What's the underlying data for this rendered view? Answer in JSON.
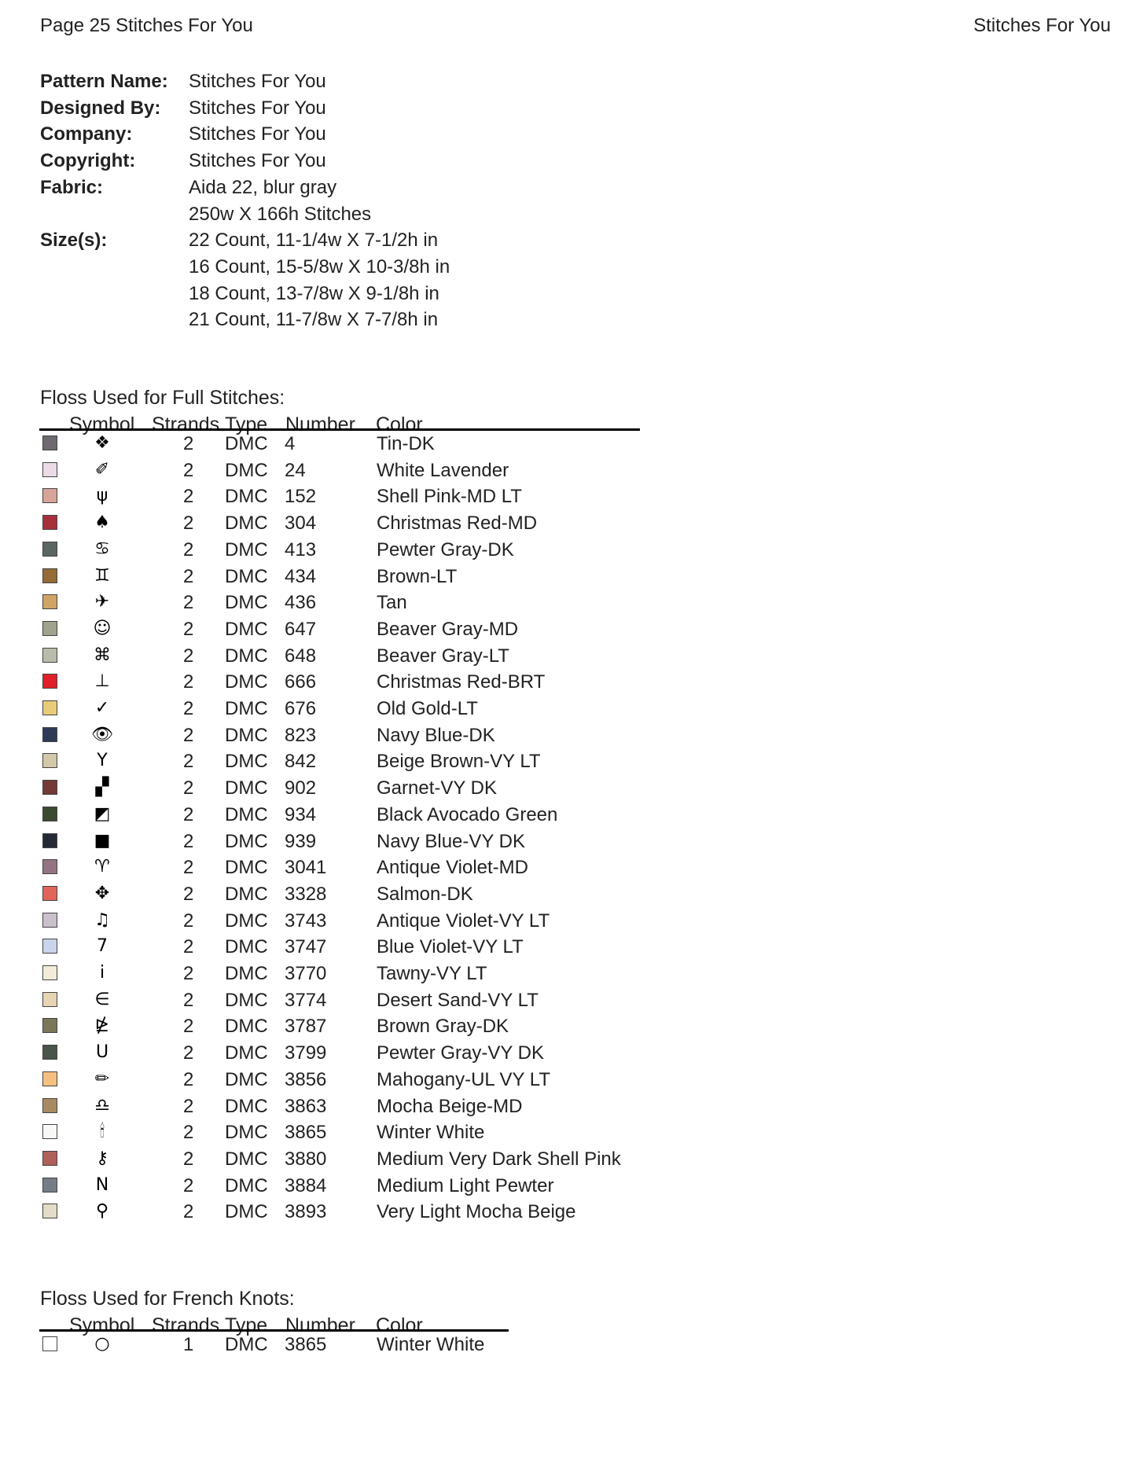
{
  "header": {
    "left": "Page 25  Stitches For You",
    "right": "Stitches For You"
  },
  "info": [
    {
      "label": "Pattern Name:",
      "value": "Stitches For You"
    },
    {
      "label": "Designed By:",
      "value": "Stitches For You"
    },
    {
      "label": "Company:",
      "value": "Stitches For You"
    },
    {
      "label": "Copyright:",
      "value": "Stitches For You"
    },
    {
      "label": "Fabric:",
      "value": "Aida 22, blur gray"
    },
    {
      "label": "",
      "value": "250w X 166h Stitches"
    },
    {
      "label": "Size(s):",
      "value": "22 Count,   11-1/4w X 7-1/2h in"
    },
    {
      "label": "",
      "value": "16 Count,   15-5/8w X 10-3/8h in"
    },
    {
      "label": "",
      "value": "18 Count,   13-7/8w X 9-1/8h in"
    },
    {
      "label": "",
      "value": "21 Count,   11-7/8w X 7-7/8h in"
    }
  ],
  "full": {
    "title": "Floss Used for Full Stitches:",
    "columns": [
      "Symbol",
      "Strands",
      "Type",
      "Number",
      "Color"
    ],
    "rows": [
      {
        "swatch": "#6e6a70",
        "symbol": "❖",
        "icon": "four-diamonds-icon",
        "strands": "2",
        "type": "DMC",
        "number": "4",
        "color": "Tin-DK"
      },
      {
        "swatch": "#eadbe6",
        "symbol": "✐",
        "icon": "pencil-icon",
        "strands": "2",
        "type": "DMC",
        "number": "24",
        "color": "White Lavender"
      },
      {
        "swatch": "#d8a49a",
        "symbol": "ψ",
        "icon": "psi-icon",
        "strands": "2",
        "type": "DMC",
        "number": "152",
        "color": "Shell Pink-MD LT"
      },
      {
        "swatch": "#a8303a",
        "symbol": "♠",
        "icon": "spade-icon",
        "strands": "2",
        "type": "DMC",
        "number": "304",
        "color": "Christmas Red-MD"
      },
      {
        "swatch": "#5b6662",
        "symbol": "♋",
        "icon": "cancer-icon",
        "strands": "2",
        "type": "DMC",
        "number": "413",
        "color": "Pewter Gray-DK"
      },
      {
        "swatch": "#946a36",
        "symbol": "♊",
        "icon": "gemini-icon",
        "strands": "2",
        "type": "DMC",
        "number": "434",
        "color": "Brown-LT"
      },
      {
        "swatch": "#d0a464",
        "symbol": "✈",
        "icon": "airplane-icon",
        "strands": "2",
        "type": "DMC",
        "number": "436",
        "color": "Tan"
      },
      {
        "swatch": "#9ea48c",
        "symbol": "☺",
        "icon": "smiley-icon",
        "strands": "2",
        "type": "DMC",
        "number": "647",
        "color": "Beaver Gray-MD"
      },
      {
        "swatch": "#b8bcaa",
        "symbol": "⌘",
        "icon": "command-icon",
        "strands": "2",
        "type": "DMC",
        "number": "648",
        "color": "Beaver Gray-LT"
      },
      {
        "swatch": "#e02028",
        "symbol": "⊥",
        "icon": "up-tack-icon",
        "strands": "2",
        "type": "DMC",
        "number": "666",
        "color": "Christmas Red-BRT"
      },
      {
        "swatch": "#e8cc78",
        "symbol": "✓",
        "icon": "check-icon",
        "strands": "2",
        "type": "DMC",
        "number": "676",
        "color": "Old Gold-LT"
      },
      {
        "swatch": "#2e3a56",
        "symbol": "👁",
        "icon": "eye-icon",
        "strands": "2",
        "type": "DMC",
        "number": "823",
        "color": "Navy Blue-DK"
      },
      {
        "swatch": "#d4c8aa",
        "symbol": "Y",
        "icon": "y-icon",
        "strands": "2",
        "type": "DMC",
        "number": "842",
        "color": "Beige Brown-VY LT"
      },
      {
        "swatch": "#743a36",
        "symbol": "▞",
        "icon": "checker-icon",
        "strands": "2",
        "type": "DMC",
        "number": "902",
        "color": "Garnet-VY DK"
      },
      {
        "swatch": "#3c4a30",
        "symbol": "◩",
        "icon": "flag-icon",
        "strands": "2",
        "type": "DMC",
        "number": "934",
        "color": "Black Avocado Green"
      },
      {
        "swatch": "#262a36",
        "symbol": "■",
        "icon": "square-icon",
        "strands": "2",
        "type": "DMC",
        "number": "939",
        "color": "Navy Blue-VY DK"
      },
      {
        "swatch": "#947482",
        "symbol": "♈",
        "icon": "aries-icon",
        "strands": "2",
        "type": "DMC",
        "number": "3041",
        "color": "Antique Violet-MD"
      },
      {
        "swatch": "#e0645a",
        "symbol": "✥",
        "icon": "cross-icon",
        "strands": "2",
        "type": "DMC",
        "number": "3328",
        "color": "Salmon-DK"
      },
      {
        "swatch": "#cac0cc",
        "symbol": "♫",
        "icon": "music-note-icon",
        "strands": "2",
        "type": "DMC",
        "number": "3743",
        "color": "Antique Violet-VY LT"
      },
      {
        "swatch": "#cad4ea",
        "symbol": "7",
        "icon": "seven-icon",
        "strands": "2",
        "type": "DMC",
        "number": "3747",
        "color": "Blue Violet-VY LT"
      },
      {
        "swatch": "#f2ecd8",
        "symbol": "i",
        "icon": "i-icon",
        "strands": "2",
        "type": "DMC",
        "number": "3770",
        "color": "Tawny-VY LT"
      },
      {
        "swatch": "#e6d4b4",
        "symbol": "∈",
        "icon": "element-of-icon",
        "strands": "2",
        "type": "DMC",
        "number": "3774",
        "color": "Desert Sand-VY LT"
      },
      {
        "swatch": "#7a7658",
        "symbol": "⋭",
        "icon": "fan-lines-icon",
        "strands": "2",
        "type": "DMC",
        "number": "3787",
        "color": "Brown Gray-DK"
      },
      {
        "swatch": "#4a544a",
        "symbol": "U",
        "icon": "u-icon",
        "strands": "2",
        "type": "DMC",
        "number": "3799",
        "color": "Pewter Gray-VY DK"
      },
      {
        "swatch": "#f4c080",
        "symbol": "✏",
        "icon": "small-pencil-icon",
        "strands": "2",
        "type": "DMC",
        "number": "3856",
        "color": "Mahogany-UL VY LT"
      },
      {
        "swatch": "#a88a62",
        "symbol": "♎",
        "icon": "libra-icon",
        "strands": "2",
        "type": "DMC",
        "number": "3863",
        "color": "Mocha Beige-MD"
      },
      {
        "swatch": "#f8f8f6",
        "symbol": "🕯",
        "icon": "candle-icon",
        "strands": "2",
        "type": "DMC",
        "number": "3865",
        "color": "Winter White"
      },
      {
        "swatch": "#b0605a",
        "symbol": "⚷",
        "icon": "key-icon",
        "strands": "2",
        "type": "DMC",
        "number": "3880",
        "color": "Medium Very Dark Shell Pink"
      },
      {
        "swatch": "#767c86",
        "symbol": "N",
        "icon": "n-icon",
        "strands": "2",
        "type": "DMC",
        "number": "3884",
        "color": "Medium Light Pewter"
      },
      {
        "swatch": "#e2dcc8",
        "symbol": "⚲",
        "icon": "small-key-icon",
        "strands": "2",
        "type": "DMC",
        "number": "3893",
        "color": "Very Light Mocha Beige"
      }
    ]
  },
  "knots": {
    "title": "Floss Used for French Knots:",
    "columns": [
      "Symbol",
      "Strands",
      "Type",
      "Number",
      "Color"
    ],
    "rows": [
      {
        "swatch": "#ffffff",
        "symbol": "○",
        "icon": "circle-icon",
        "strands": "1",
        "type": "DMC",
        "number": "3865",
        "color": "Winter White"
      }
    ]
  }
}
